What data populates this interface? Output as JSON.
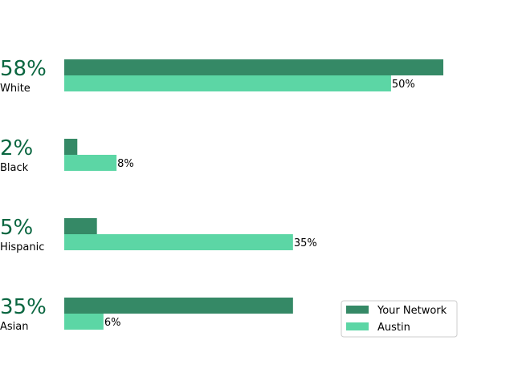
{
  "chart_data": {
    "type": "bar",
    "orientation": "horizontal",
    "categories": [
      "White",
      "Black",
      "Hispanic",
      "Asian"
    ],
    "series": [
      {
        "name": "Your Network",
        "values": [
          58,
          2,
          5,
          35
        ],
        "color": "#358966"
      },
      {
        "name": "Austin",
        "values": [
          50,
          8,
          35,
          6
        ],
        "color": "#5cd6a5"
      }
    ],
    "primary_labels": [
      "58%",
      "2%",
      "5%",
      "35%"
    ],
    "secondary_labels": [
      "50%",
      "8%",
      "35%",
      "6%"
    ],
    "primary_label_color": "#0a6640",
    "xlim": [
      0,
      58
    ],
    "grid": false,
    "legend_position": "lower-right",
    "title": "",
    "xlabel": "",
    "ylabel": ""
  }
}
